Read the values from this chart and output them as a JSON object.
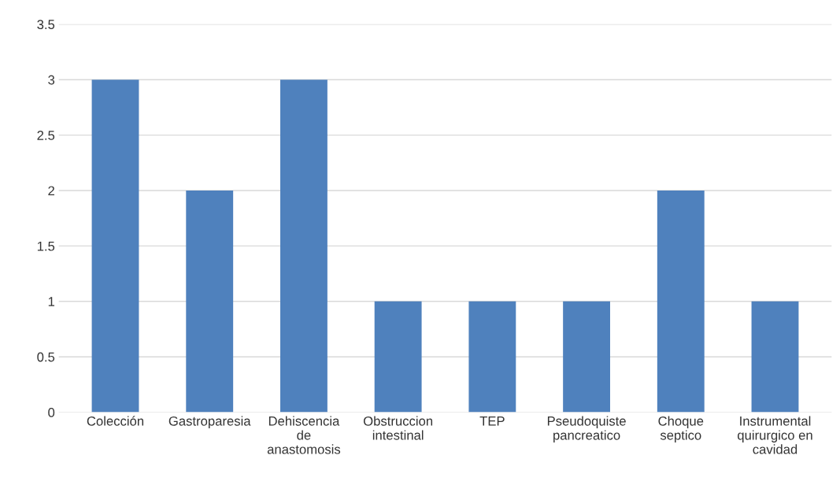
{
  "chart_data": {
    "type": "bar",
    "categories": [
      "Colección",
      "Gastroparesia",
      "Dehiscencia de anastomosis",
      "Obstruccion intestinal",
      "TEP",
      "Pseudoquiste pancreatico",
      "Choque septico",
      "Instrumental quirurgico en cavidad"
    ],
    "values": [
      3,
      2,
      3,
      1,
      1,
      1,
      2,
      1
    ],
    "color": "#4f81bd",
    "ylim": [
      0,
      3.5
    ],
    "yticks": [
      0,
      0.5,
      1,
      1.5,
      2,
      2.5,
      3,
      3.5
    ],
    "grid": "y",
    "legend": false
  }
}
